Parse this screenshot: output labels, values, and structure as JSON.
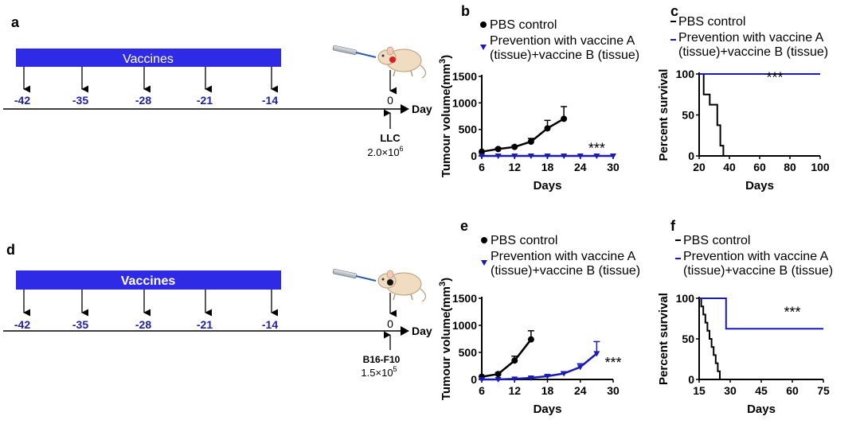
{
  "colors": {
    "vaccine_bar": "#2e2ae6",
    "day_label": "#2020a0",
    "control": "#000000",
    "treated": "#1a1ab5"
  },
  "panels": {
    "a": {
      "letter": "a",
      "bar_label": "Vaccines",
      "days": [
        "-42",
        "-35",
        "-28",
        "-21",
        "-14"
      ],
      "zero": "0",
      "axis_label": "Day",
      "cell_line": "LLC",
      "dose_mantissa": "2.0×10",
      "dose_exp": "6"
    },
    "d": {
      "letter": "d",
      "bar_label": "Vaccines",
      "days": [
        "-42",
        "-35",
        "-28",
        "-21",
        "-14"
      ],
      "zero": "0",
      "axis_label": "Day",
      "cell_line": "B16-F10",
      "dose_mantissa": "1.5×10",
      "dose_exp": "5"
    }
  },
  "chart_data": [
    {
      "panel": "b",
      "type": "line",
      "title": "",
      "legend": [
        "PBS control",
        "Prevention with vaccine A",
        "(tissue)+vaccine B (tissue)"
      ],
      "xlabel": "Days",
      "ylabel": "Tumour volume(mm",
      "ylabel_sup": "3",
      "ylabel_end": ")",
      "xlim": [
        6,
        30
      ],
      "ylim": [
        0,
        1500
      ],
      "xticks": [
        6,
        12,
        18,
        24,
        30
      ],
      "yticks": [
        0,
        500,
        1000,
        1500
      ],
      "significance": "***",
      "sig_at": [
        27,
        50
      ],
      "series": [
        {
          "name": "PBS control",
          "x": [
            6,
            9,
            12,
            15,
            18,
            21
          ],
          "y": [
            80,
            130,
            170,
            270,
            520,
            700
          ],
          "err": [
            0,
            20,
            25,
            60,
            150,
            230
          ]
        },
        {
          "name": "Prevention with vaccine A (tissue)+vaccine B (tissue)",
          "x": [
            6,
            9,
            12,
            15,
            18,
            21,
            24,
            27,
            30
          ],
          "y": [
            0,
            0,
            0,
            0,
            0,
            0,
            0,
            0,
            0
          ],
          "err": [
            0,
            0,
            0,
            0,
            0,
            0,
            0,
            0,
            0
          ]
        }
      ]
    },
    {
      "panel": "c",
      "type": "line",
      "title": "",
      "legend": [
        "PBS control",
        "Prevention with vaccine A",
        "(tissue)+vaccine B (tissue)"
      ],
      "xlabel": "Days",
      "ylabel": "Percent survival",
      "xlim": [
        20,
        100
      ],
      "ylim": [
        0,
        100
      ],
      "xticks": [
        20,
        40,
        60,
        80,
        100
      ],
      "yticks": [
        0,
        50,
        100
      ],
      "significance": "***",
      "sig_at": [
        70,
        90
      ],
      "series": [
        {
          "name": "PBS control",
          "steps": [
            [
              20,
              100
            ],
            [
              23,
              100
            ],
            [
              23,
              75
            ],
            [
              27,
              75
            ],
            [
              27,
              62.5
            ],
            [
              32,
              62.5
            ],
            [
              32,
              37.5
            ],
            [
              34,
              37.5
            ],
            [
              34,
              12.5
            ],
            [
              36,
              12.5
            ],
            [
              36,
              0
            ],
            [
              40,
              0
            ]
          ]
        },
        {
          "name": "Prevention with vaccine A (tissue)+vaccine B (tissue)",
          "steps": [
            [
              20,
              100
            ],
            [
              100,
              100
            ]
          ]
        }
      ]
    },
    {
      "panel": "e",
      "type": "line",
      "title": "",
      "legend": [
        "PBS control",
        "Prevention with vaccine A",
        "(tissue)+vaccine B (tissue)"
      ],
      "xlabel": "Days",
      "ylabel": "Tumour volume(mm",
      "ylabel_sup": "3",
      "ylabel_end": ")",
      "xlim": [
        6,
        30
      ],
      "ylim": [
        0,
        1500
      ],
      "xticks": [
        6,
        12,
        18,
        24,
        30
      ],
      "yticks": [
        0,
        500,
        1000,
        1500
      ],
      "significance": "***",
      "sig_at": [
        30,
        220
      ],
      "series": [
        {
          "name": "PBS control",
          "x": [
            6,
            9,
            12,
            15
          ],
          "y": [
            50,
            100,
            350,
            740
          ],
          "err": [
            0,
            30,
            80,
            160
          ]
        },
        {
          "name": "Prevention with vaccine A (tissue)+vaccine B (tissue)",
          "x": [
            6,
            9,
            12,
            15,
            18,
            21,
            24,
            27
          ],
          "y": [
            0,
            0,
            10,
            30,
            60,
            110,
            230,
            480
          ],
          "err": [
            0,
            0,
            0,
            10,
            20,
            30,
            60,
            220
          ]
        }
      ]
    },
    {
      "panel": "f",
      "type": "line",
      "title": "",
      "legend": [
        "PBS control",
        "Prevention with vaccine A",
        "(tissue)+vaccine B (tissue)"
      ],
      "xlabel": "Days",
      "ylabel": "Percent survival",
      "xlim": [
        15,
        75
      ],
      "ylim": [
        0,
        100
      ],
      "xticks": [
        15,
        30,
        45,
        60,
        75
      ],
      "yticks": [
        0,
        50,
        100
      ],
      "significance": "***",
      "sig_at": [
        60,
        77
      ],
      "series": [
        {
          "name": "PBS control",
          "steps": [
            [
              15,
              100
            ],
            [
              16,
              100
            ],
            [
              16,
              90
            ],
            [
              17,
              90
            ],
            [
              17,
              80
            ],
            [
              18,
              80
            ],
            [
              18,
              70
            ],
            [
              19,
              70
            ],
            [
              19,
              60
            ],
            [
              20,
              60
            ],
            [
              20,
              50
            ],
            [
              21,
              50
            ],
            [
              21,
              40
            ],
            [
              22,
              40
            ],
            [
              22,
              30
            ],
            [
              23,
              30
            ],
            [
              23,
              20
            ],
            [
              24,
              20
            ],
            [
              24,
              10
            ],
            [
              25,
              10
            ],
            [
              25,
              0
            ],
            [
              26,
              0
            ]
          ]
        },
        {
          "name": "Prevention with vaccine A (tissue)+vaccine B (tissue)",
          "steps": [
            [
              15,
              100
            ],
            [
              28,
              100
            ],
            [
              28,
              62.5
            ],
            [
              75,
              62.5
            ]
          ]
        }
      ]
    }
  ]
}
